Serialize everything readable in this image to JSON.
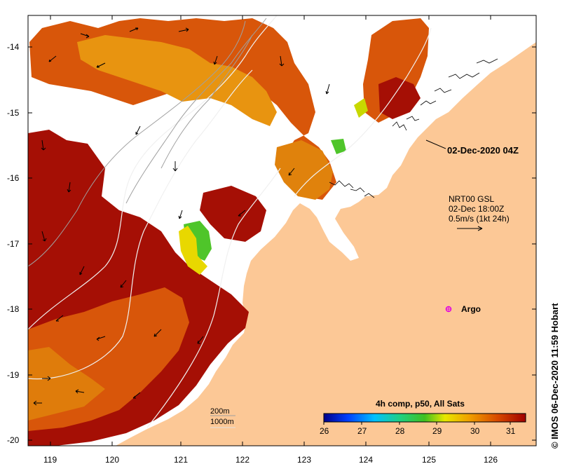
{
  "map": {
    "date_label": "02-Dec-2020 04Z",
    "current_legend": {
      "line1": "NRT00 GSL",
      "line2": "02-Dec 18:00Z",
      "line3": "0.5m/s (1kt 24h)"
    },
    "argo_label": "Argo",
    "isobaths": {
      "label1": "200m",
      "label2": "1000m"
    },
    "colorbar": {
      "title": "4h comp, p50, All Sats",
      "ticks": [
        "26",
        "27",
        "28",
        "29",
        "30",
        "31"
      ]
    },
    "lat_ticks": [
      "-14",
      "-15",
      "-16",
      "-17",
      "-18",
      "-19",
      "-20"
    ],
    "lon_ticks": [
      "119",
      "120",
      "121",
      "122",
      "123",
      "124",
      "125",
      "126"
    ],
    "credit": "© IMOS 06-Dec-2020 11:59 Hobart",
    "colors": {
      "land": "#fcc896",
      "sst_hot": "#a50f05",
      "sst_warm": "#d8560a",
      "sst_mid": "#e89410",
      "sst_green": "#4fc52a",
      "argo": "#e000e0"
    }
  }
}
